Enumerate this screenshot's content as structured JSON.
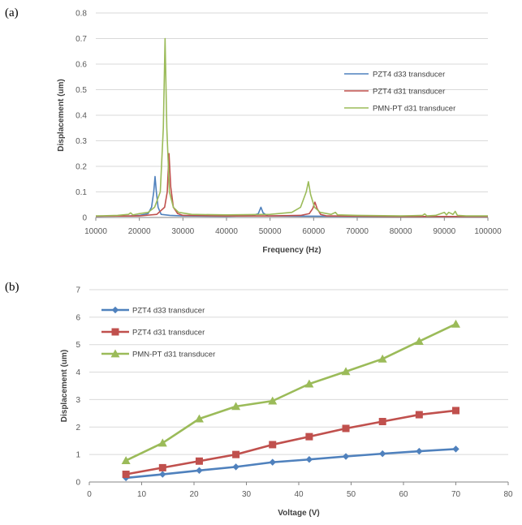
{
  "panels": {
    "a_label": "(a)",
    "b_label": "(b)"
  },
  "colors": {
    "blue": "#4f81bd",
    "red": "#c0504d",
    "green": "#9bbb59"
  },
  "chart_data": [
    {
      "type": "line",
      "title": "",
      "xlabel": "Frequency (Hz)",
      "ylabel": "Displacement (um)",
      "xlim": [
        10000,
        100000
      ],
      "ylim": [
        0,
        0.8
      ],
      "x_ticks": [
        10000,
        20000,
        30000,
        40000,
        50000,
        60000,
        70000,
        80000,
        90000,
        100000
      ],
      "y_ticks": [
        0,
        0.1,
        0.2,
        0.3,
        0.4,
        0.5,
        0.6,
        0.7,
        0.8
      ],
      "x_tick_labels": [
        "10000",
        "20000",
        "30000",
        "40000",
        "50000",
        "60000",
        "70000",
        "80000",
        "90000",
        "100000"
      ],
      "y_tick_labels": [
        "0",
        "0.1",
        "0.2",
        "0.3",
        "0.4",
        "0.5",
        "0.6",
        "0.7",
        "0.8"
      ],
      "grid": "horizontal",
      "legend": "right",
      "series": [
        {
          "name": "PZT4 d33 transducer",
          "color": "#4f81bd",
          "points": [
            [
              10000,
              0.005
            ],
            [
              18000,
              0.006
            ],
            [
              20000,
              0.008
            ],
            [
              22000,
              0.015
            ],
            [
              22800,
              0.04
            ],
            [
              23300,
              0.1
            ],
            [
              23600,
              0.16
            ],
            [
              23900,
              0.1
            ],
            [
              24300,
              0.04
            ],
            [
              25000,
              0.012
            ],
            [
              27000,
              0.008
            ],
            [
              30000,
              0.006
            ],
            [
              40000,
              0.005
            ],
            [
              46000,
              0.007
            ],
            [
              47300,
              0.015
            ],
            [
              47900,
              0.04
            ],
            [
              48400,
              0.018
            ],
            [
              49500,
              0.006
            ],
            [
              60000,
              0.005
            ],
            [
              80000,
              0.004
            ],
            [
              100000,
              0.004
            ]
          ]
        },
        {
          "name": "PZT4 d31 transducer",
          "color": "#c0504d",
          "points": [
            [
              10000,
              0.005
            ],
            [
              20000,
              0.006
            ],
            [
              24000,
              0.012
            ],
            [
              25800,
              0.04
            ],
            [
              26400,
              0.1
            ],
            [
              26800,
              0.25
            ],
            [
              27200,
              0.12
            ],
            [
              27800,
              0.04
            ],
            [
              28800,
              0.015
            ],
            [
              30000,
              0.008
            ],
            [
              40000,
              0.006
            ],
            [
              50000,
              0.006
            ],
            [
              57000,
              0.008
            ],
            [
              59000,
              0.015
            ],
            [
              59800,
              0.035
            ],
            [
              60300,
              0.06
            ],
            [
              60800,
              0.035
            ],
            [
              61600,
              0.012
            ],
            [
              63000,
              0.006
            ],
            [
              80000,
              0.004
            ],
            [
              100000,
              0.004
            ]
          ]
        },
        {
          "name": "PMN-PT d31 transducer",
          "color": "#9bbb59",
          "points": [
            [
              10000,
              0.006
            ],
            [
              15000,
              0.008
            ],
            [
              17500,
              0.012
            ],
            [
              18000,
              0.018
            ],
            [
              18500,
              0.01
            ],
            [
              20000,
              0.015
            ],
            [
              22000,
              0.02
            ],
            [
              23500,
              0.04
            ],
            [
              24800,
              0.1
            ],
            [
              25500,
              0.35
            ],
            [
              25900,
              0.7
            ],
            [
              26300,
              0.35
            ],
            [
              26900,
              0.1
            ],
            [
              27800,
              0.04
            ],
            [
              29000,
              0.02
            ],
            [
              32000,
              0.012
            ],
            [
              40000,
              0.01
            ],
            [
              50000,
              0.012
            ],
            [
              55000,
              0.02
            ],
            [
              57000,
              0.04
            ],
            [
              58300,
              0.1
            ],
            [
              58800,
              0.14
            ],
            [
              59300,
              0.09
            ],
            [
              60200,
              0.04
            ],
            [
              61500,
              0.02
            ],
            [
              64000,
              0.012
            ],
            [
              65000,
              0.02
            ],
            [
              65500,
              0.01
            ],
            [
              70000,
              0.008
            ],
            [
              80000,
              0.006
            ],
            [
              85000,
              0.008
            ],
            [
              85500,
              0.014
            ],
            [
              86000,
              0.006
            ],
            [
              88000,
              0.008
            ],
            [
              89000,
              0.014
            ],
            [
              90000,
              0.02
            ],
            [
              90500,
              0.01
            ],
            [
              91000,
              0.02
            ],
            [
              92000,
              0.012
            ],
            [
              92500,
              0.024
            ],
            [
              93000,
              0.008
            ],
            [
              95000,
              0.006
            ],
            [
              100000,
              0.006
            ]
          ]
        }
      ]
    },
    {
      "type": "line",
      "title": "",
      "xlabel": "Voltage (V)",
      "ylabel": "Displacement (um)",
      "xlim": [
        0,
        80
      ],
      "ylim": [
        0,
        7
      ],
      "x_ticks": [
        0,
        10,
        20,
        30,
        40,
        50,
        60,
        70,
        80
      ],
      "y_ticks": [
        0,
        1,
        2,
        3,
        4,
        5,
        6,
        7
      ],
      "x_tick_labels": [
        "0",
        "10",
        "20",
        "30",
        "40",
        "50",
        "60",
        "70",
        "80"
      ],
      "y_tick_labels": [
        "0",
        "1",
        "2",
        "3",
        "4",
        "5",
        "6",
        "7"
      ],
      "grid": "horizontal",
      "legend": "top-left",
      "x": [
        7,
        14,
        21,
        28,
        35,
        42,
        49,
        56,
        63,
        70
      ],
      "series": [
        {
          "name": "PZT4 d33 transducer",
          "color": "#4f81bd",
          "marker": "diamond",
          "values": [
            0.15,
            0.28,
            0.42,
            0.55,
            0.72,
            0.82,
            0.93,
            1.03,
            1.12,
            1.2
          ]
        },
        {
          "name": "PZT4 d31 transducer",
          "color": "#c0504d",
          "marker": "square",
          "values": [
            0.28,
            0.52,
            0.76,
            1.0,
            1.36,
            1.65,
            1.95,
            2.2,
            2.45,
            2.6
          ]
        },
        {
          "name": "PMN-PT d31 transducer",
          "color": "#9bbb59",
          "marker": "triangle",
          "values": [
            0.78,
            1.42,
            2.3,
            2.75,
            2.95,
            3.57,
            4.02,
            4.48,
            5.12,
            5.75
          ]
        }
      ]
    }
  ]
}
